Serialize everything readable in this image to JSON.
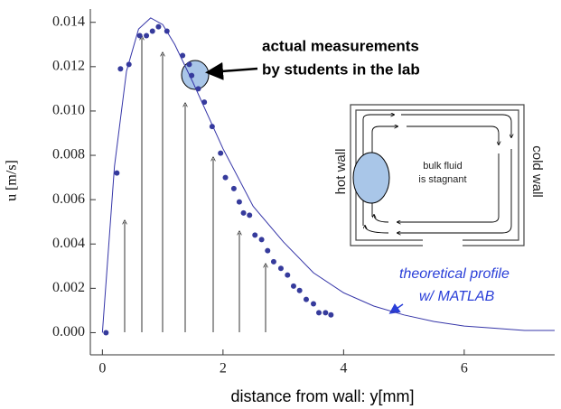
{
  "chart_data": {
    "type": "scatter",
    "xlabel": "distance from wall:    y[mm]",
    "ylabel": "u [m/s]",
    "xlim": [
      -0.2,
      7.5
    ],
    "xticks": [
      0,
      2,
      4,
      6
    ],
    "ylim": [
      -0.001,
      0.0146
    ],
    "yticks": [
      {
        "value": 0,
        "label": "0.000"
      },
      {
        "value": 0.002,
        "label": "0.002"
      },
      {
        "value": 0.004,
        "label": "0.004"
      },
      {
        "value": 0.006,
        "label": "0.006"
      },
      {
        "value": 0.008,
        "label": "0.008"
      },
      {
        "value": 0.01,
        "label": "0.010"
      },
      {
        "value": 0.012,
        "label": "0.012"
      },
      {
        "value": 0.014,
        "label": "0.014"
      }
    ],
    "series": [
      {
        "mode": "markers",
        "color": "#363b9c",
        "x": [
          0.06,
          0.24,
          0.3,
          0.44,
          0.62,
          0.73,
          0.83,
          0.93,
          1.07,
          1.33,
          1.44,
          1.48,
          1.59,
          1.69,
          1.82,
          1.96,
          2.04,
          2.18,
          2.27,
          2.34,
          2.44,
          2.53,
          2.64,
          2.74,
          2.84,
          2.96,
          3.07,
          3.17,
          3.27,
          3.38,
          3.5,
          3.59,
          3.7,
          3.79
        ],
        "values": [
          0,
          0.0072,
          0.0119,
          0.0121,
          0.0134,
          0.0134,
          0.0136,
          0.0138,
          0.0136,
          0.0125,
          0.0121,
          0.0116,
          0.011,
          0.0104,
          0.0093,
          0.0081,
          0.007,
          0.0065,
          0.0059,
          0.0054,
          0.0053,
          0.0044,
          0.0042,
          0.0037,
          0.0032,
          0.0029,
          0.0026,
          0.0021,
          0.0019,
          0.0015,
          0.0013,
          0.0009,
          0.0009,
          0.0008
        ]
      },
      {
        "mode": "line",
        "color": "#3535a8",
        "x": [
          0,
          0.2,
          0.4,
          0.6,
          0.8,
          1.0,
          1.2,
          1.5,
          2.0,
          2.5,
          3.0,
          3.5,
          4.0,
          4.5,
          5.0,
          5.5,
          6.0,
          6.5,
          7.0,
          7.5
        ],
        "values": [
          0,
          0.0075,
          0.0118,
          0.0137,
          0.0142,
          0.0139,
          0.013,
          0.0113,
          0.0083,
          0.0057,
          0.0041,
          0.0027,
          0.0018,
          0.0012,
          0.0008,
          0.0005,
          0.0003,
          0.0002,
          0.0001,
          0.0001
        ]
      }
    ],
    "annotations": [
      "actual measurements",
      "by students in the lab",
      "theoretical profile",
      "w/ MATLAB"
    ],
    "inset": {
      "left_wall": "hot wall",
      "right_wall": "cold wall",
      "center": [
        "bulk fluid",
        "is stagnant"
      ]
    }
  }
}
